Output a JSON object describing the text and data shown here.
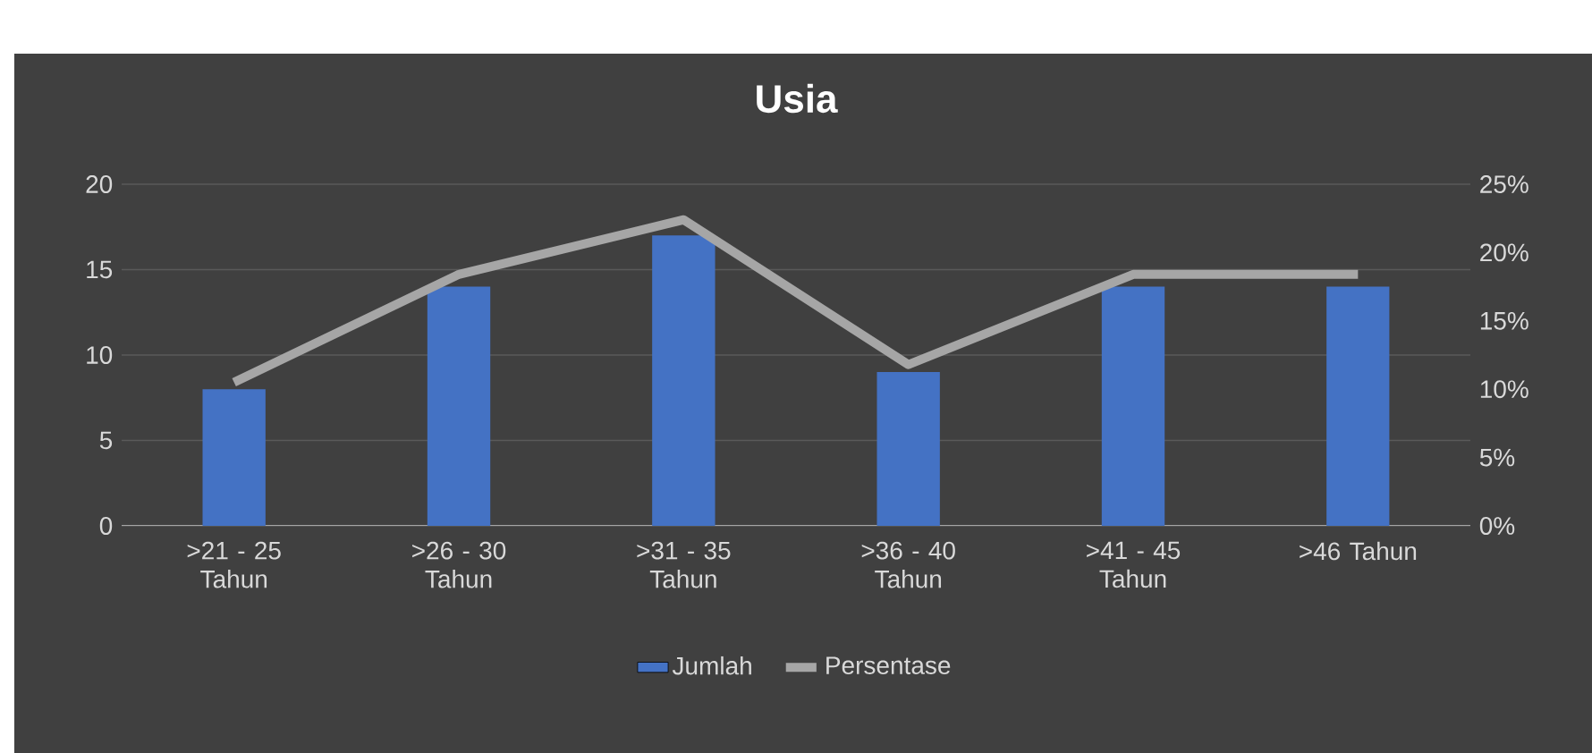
{
  "chart_data": {
    "type": "bar",
    "title": "Usia",
    "categories": [
      ">21 - 25 Tahun",
      ">26 - 30 Tahun",
      ">31 - 35 Tahun",
      ">36 - 40 Tahun",
      ">41 - 45 Tahun",
      ">46 Tahun"
    ],
    "series": [
      {
        "name": "Jumlah",
        "color": "#4472c4",
        "values": [
          8,
          14,
          17,
          9,
          14,
          14
        ]
      },
      {
        "name": "Persentase",
        "type": "line",
        "axis": "y2",
        "color": "#a6a6a6",
        "values": [
          10.5,
          18.4,
          22.4,
          11.8,
          18.4,
          18.4
        ]
      }
    ],
    "ylim": [
      0,
      20
    ],
    "yticks": [
      0,
      5,
      10,
      15,
      20
    ],
    "y2lim": [
      0,
      25
    ],
    "y2ticks": [
      {
        "value": 0,
        "label": "0%"
      },
      {
        "value": 5,
        "label": "5%"
      },
      {
        "value": 10,
        "label": "10%"
      },
      {
        "value": 15,
        "label": "15%"
      },
      {
        "value": 20,
        "label": "20%"
      },
      {
        "value": 25,
        "label": "25%"
      }
    ],
    "grid": "y",
    "legend": "bottom",
    "marker": "none",
    "line_style": "solid"
  }
}
